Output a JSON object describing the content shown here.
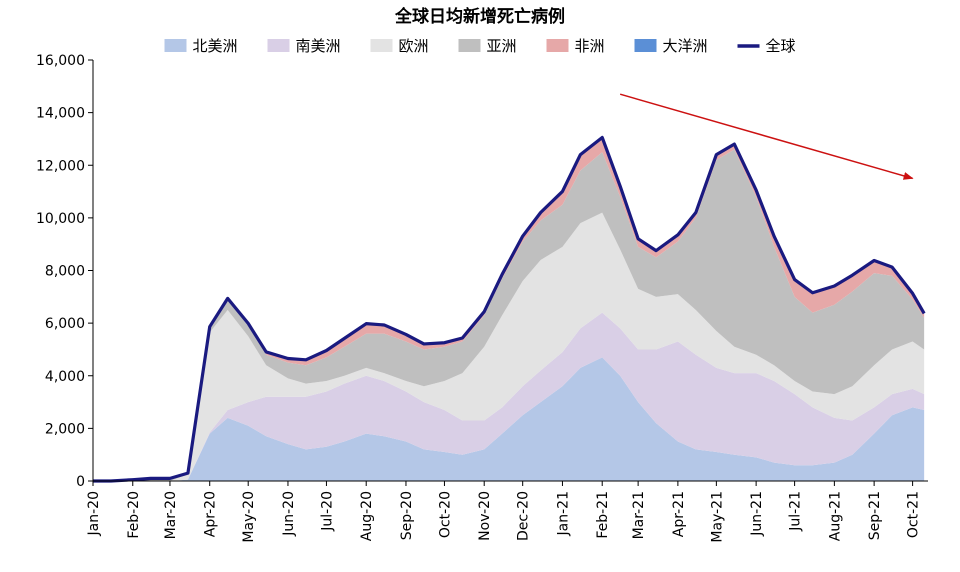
{
  "chart_data": {
    "type": "area",
    "title": "全球日均新增死亡病例",
    "xlabel": "",
    "ylabel": "",
    "ylim": [
      0,
      16000
    ],
    "y_ticks": [
      0,
      2000,
      4000,
      6000,
      8000,
      10000,
      12000,
      14000,
      16000
    ],
    "y_tick_labels": [
      "0",
      "2,000",
      "4,000",
      "6,000",
      "8,000",
      "10,000",
      "12,000",
      "14,000",
      "16,000"
    ],
    "x_tick_labels": [
      "Jan-20",
      "Feb-20",
      "Mar-20",
      "Apr-20",
      "May-20",
      "Jun-20",
      "Jul-20",
      "Aug-20",
      "Sep-20",
      "Oct-20",
      "Nov-20",
      "Dec-20",
      "Jan-21",
      "Feb-21",
      "Mar-21",
      "Apr-21",
      "May-21",
      "Jun-21",
      "Jul-21",
      "Aug-21",
      "Sep-21",
      "Oct-21"
    ],
    "legend_position": "top",
    "x": [
      "2020-01-01",
      "2020-01-15",
      "2020-02-01",
      "2020-02-15",
      "2020-03-01",
      "2020-03-15",
      "2020-04-01",
      "2020-04-15",
      "2020-05-01",
      "2020-05-15",
      "2020-06-01",
      "2020-06-15",
      "2020-07-01",
      "2020-07-15",
      "2020-08-01",
      "2020-08-15",
      "2020-09-01",
      "2020-09-15",
      "2020-10-01",
      "2020-10-15",
      "2020-11-01",
      "2020-11-15",
      "2020-12-01",
      "2020-12-15",
      "2021-01-01",
      "2021-01-15",
      "2021-02-01",
      "2021-02-15",
      "2021-03-01",
      "2021-03-15",
      "2021-04-01",
      "2021-04-15",
      "2021-05-01",
      "2021-05-15",
      "2021-06-01",
      "2021-06-15",
      "2021-07-01",
      "2021-07-15",
      "2021-08-01",
      "2021-08-15",
      "2021-09-01",
      "2021-09-15",
      "2021-10-01",
      "2021-10-10"
    ],
    "series": [
      {
        "name": "北美洲",
        "color": "#b4c7e7",
        "values": [
          0,
          0,
          0,
          0,
          0,
          50,
          1800,
          2400,
          2100,
          1700,
          1400,
          1200,
          1300,
          1500,
          1800,
          1700,
          1500,
          1200,
          1100,
          1000,
          1200,
          1800,
          2500,
          3000,
          3600,
          4300,
          4700,
          4000,
          3000,
          2200,
          1500,
          1200,
          1100,
          1000,
          900,
          700,
          600,
          600,
          700,
          1000,
          1800,
          2500,
          2800,
          2700
        ]
      },
      {
        "name": "南美洲",
        "color": "#d9cfe6",
        "values": [
          0,
          0,
          0,
          0,
          0,
          0,
          50,
          300,
          900,
          1500,
          1800,
          2000,
          2100,
          2200,
          2200,
          2100,
          1900,
          1800,
          1600,
          1300,
          1100,
          1000,
          1100,
          1200,
          1300,
          1500,
          1700,
          1800,
          2000,
          2800,
          3800,
          3600,
          3200,
          3100,
          3200,
          3100,
          2700,
          2200,
          1700,
          1300,
          1000,
          800,
          700,
          600
        ]
      },
      {
        "name": "欧洲",
        "color": "#e3e3e3",
        "values": [
          0,
          0,
          0,
          0,
          0,
          200,
          3800,
          3800,
          2500,
          1200,
          700,
          500,
          400,
          300,
          300,
          300,
          400,
          600,
          1100,
          1800,
          2800,
          3500,
          4000,
          4200,
          4000,
          4000,
          3800,
          3000,
          2300,
          2000,
          1800,
          1700,
          1400,
          1000,
          700,
          600,
          500,
          600,
          900,
          1300,
          1600,
          1700,
          1800,
          1700
        ]
      },
      {
        "name": "亚洲",
        "color": "#bfbfbf",
        "values": [
          0,
          0,
          50,
          100,
          100,
          50,
          200,
          400,
          400,
          400,
          600,
          700,
          900,
          1100,
          1300,
          1500,
          1500,
          1400,
          1300,
          1200,
          1200,
          1400,
          1500,
          1500,
          1600,
          2000,
          2300,
          2000,
          1600,
          1500,
          2000,
          3500,
          6500,
          7500,
          6000,
          4500,
          3200,
          3000,
          3400,
          3600,
          3500,
          2800,
          1600,
          1200
        ]
      },
      {
        "name": "非洲",
        "color": "#e6a8a8",
        "values": [
          0,
          0,
          0,
          0,
          0,
          0,
          10,
          30,
          80,
          100,
          150,
          200,
          250,
          300,
          350,
          300,
          250,
          200,
          150,
          130,
          130,
          150,
          200,
          300,
          500,
          600,
          550,
          400,
          300,
          250,
          250,
          200,
          200,
          200,
          250,
          400,
          650,
          750,
          700,
          600,
          450,
          300,
          200,
          150
        ]
      },
      {
        "name": "大洋洲",
        "color": "#5b8fd6",
        "values": [
          0,
          0,
          0,
          0,
          0,
          0,
          5,
          10,
          10,
          5,
          5,
          5,
          10,
          20,
          30,
          30,
          20,
          10,
          5,
          5,
          5,
          5,
          5,
          5,
          5,
          5,
          5,
          5,
          5,
          5,
          5,
          5,
          5,
          5,
          5,
          5,
          5,
          5,
          10,
          20,
          30,
          30,
          30,
          20
        ]
      }
    ],
    "total": {
      "name": "全球",
      "color": "#1a1a80",
      "values": [
        0,
        0,
        50,
        100,
        100,
        300,
        5865,
        6940,
        5990,
        4905,
        4655,
        4605,
        4960,
        5420,
        5980,
        5930,
        5570,
        5210,
        5255,
        5435,
        6435,
        7855,
        9305,
        10205,
        11005,
        12405,
        13055,
        11205,
        9205,
        8755,
        9355,
        10205,
        12405,
        12805,
        11055,
        9305,
        7655,
        7155,
        7410,
        7820,
        8380,
        8130,
        7130,
        6370
      ]
    },
    "annotations": [
      {
        "type": "trend-arrow",
        "color": "#cc1111",
        "from": [
          "2021-02-15",
          14700
        ],
        "to": [
          "2021-10-01",
          11500
        ]
      }
    ]
  }
}
